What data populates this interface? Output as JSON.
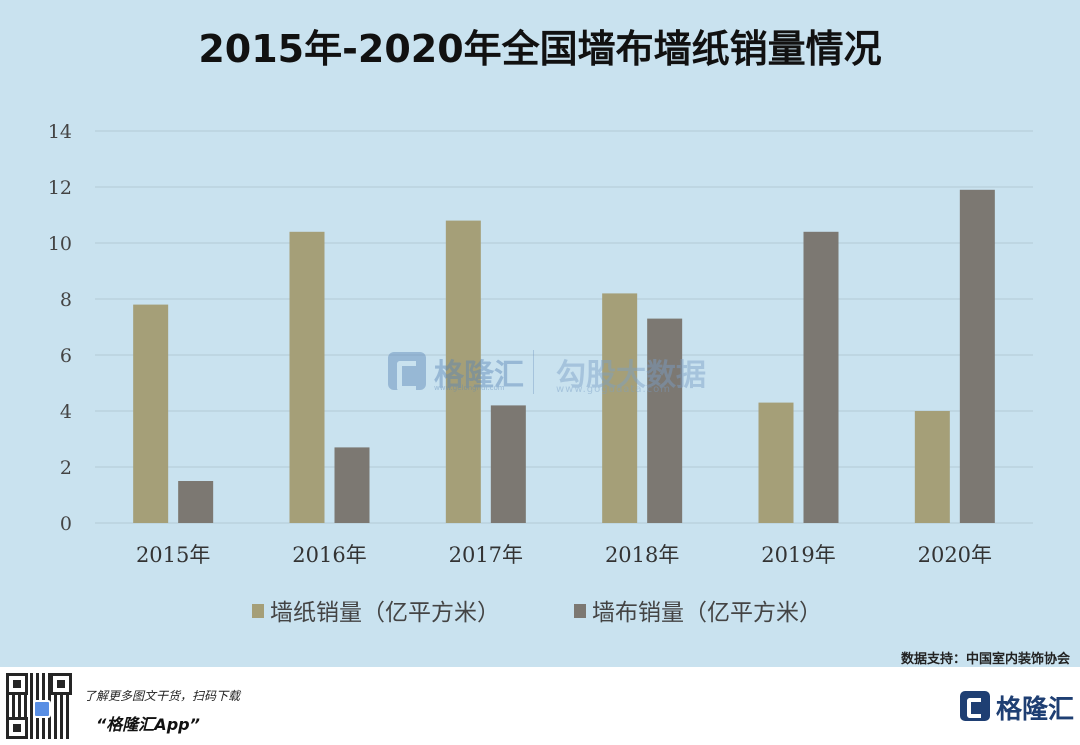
{
  "chart_data": {
    "type": "bar",
    "title": "2015年-2020年全国墙布墙纸销量情况",
    "categories": [
      "2015年",
      "2016年",
      "2017年",
      "2018年",
      "2019年",
      "2020年"
    ],
    "series": [
      {
        "name": "墙纸销量（亿平方米）",
        "values": [
          7.8,
          10.4,
          10.8,
          8.2,
          4.3,
          4.0
        ],
        "color": "#a59f78"
      },
      {
        "name": "墙布销量（亿平方米）",
        "values": [
          1.5,
          2.7,
          4.2,
          7.3,
          10.4,
          11.9
        ],
        "color": "#7c7872"
      }
    ],
    "y_ticks": [
      "0",
      "2",
      "4",
      "6",
      "8",
      "10",
      "12",
      "14"
    ],
    "ylim": [
      0,
      14
    ],
    "grid": true,
    "legend_position": "bottom"
  },
  "watermark": {
    "name": "格隆汇",
    "url": "www.gelonghui.com",
    "name2": "勾股大数据",
    "url2": "www.gogudata.com"
  },
  "source": "数据支持：中国室内装饰协会",
  "footer": {
    "line1": "了解更多图文干货，扫码下载",
    "line2": "“格隆汇App”",
    "brand": "格隆汇"
  },
  "colors": {
    "background": "#c9e2ef",
    "grid": "#b9cfdb"
  }
}
